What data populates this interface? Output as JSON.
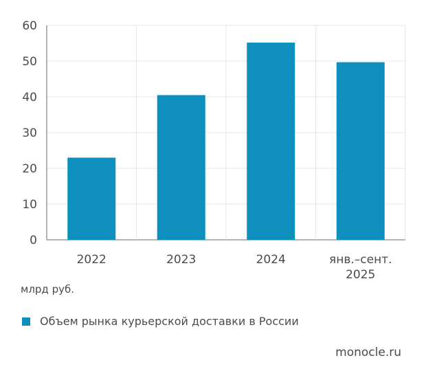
{
  "chart_data": {
    "type": "bar",
    "categories": [
      "2022",
      "2023",
      "2024",
      "янв.–сент. 2025"
    ],
    "category_lines": [
      [
        "2022"
      ],
      [
        "2023"
      ],
      [
        "2024"
      ],
      [
        "янв.–сент.",
        "2025"
      ]
    ],
    "values": [
      23,
      40.5,
      55.2,
      49.7
    ],
    "ylim": [
      0,
      60
    ],
    "yticks": [
      0,
      10,
      20,
      30,
      40,
      50,
      60
    ],
    "grid": true,
    "unit_label": "млрд руб.",
    "series_name": "Объем рынка курьерской доставки в России",
    "bar_color": "#0e8fbe",
    "legend_position": "bottom-left"
  },
  "source": "monocle.ru"
}
